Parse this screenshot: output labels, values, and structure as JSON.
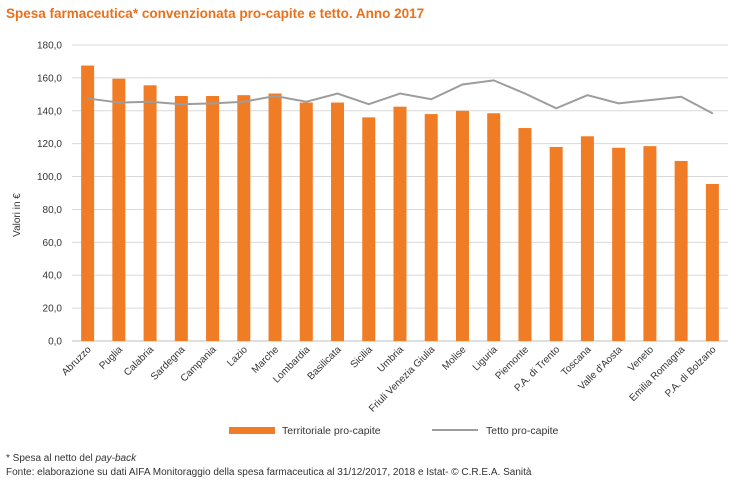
{
  "title": "Spesa farmaceutica* convenzionata pro-capite e tetto. Anno 2017",
  "footnote": {
    "prefix": "* Spesa al netto del ",
    "italic": "pay-back",
    "source": "Fonte: elaborazione su dati AIFA Monitoraggio della spesa farmaceutica al 31/12/2017, 2018 e Istat- © C.R.E.A. Sanità"
  },
  "colors": {
    "bar": "#f07d26",
    "line": "#9d9d9d",
    "title": "#e8711d",
    "grid": "#d9d9d9"
  },
  "chart_data": {
    "type": "bar",
    "title": "Spesa farmaceutica* convenzionata pro-capite e tetto. Anno 2017",
    "xlabel": "",
    "ylabel": "Valori in €",
    "ylim": [
      0,
      180
    ],
    "yticks": [
      "0,0",
      "20,0",
      "40,0",
      "60,0",
      "80,0",
      "100,0",
      "120,0",
      "140,0",
      "160,0",
      "180,0"
    ],
    "grid": true,
    "legend_position": "bottom",
    "categories": [
      "Abruzzo",
      "Puglia",
      "Calabria",
      "Sardegna",
      "Campania",
      "Lazio",
      "Marche",
      "Lombardia",
      "Basilicata",
      "Sicilia",
      "Umbria",
      "Friuli Venezia Giulia",
      "Molise",
      "Liguria",
      "Piemonte",
      "P.A. di Trento",
      "Toscana",
      "Valle d'Aosta",
      "Veneto",
      "Emilia Romagna",
      "P.A. di Bolzano"
    ],
    "series": [
      {
        "name": "Territoriale pro-capite",
        "type": "bar",
        "values": [
          167.5,
          159.5,
          155.5,
          149.0,
          149.0,
          149.5,
          150.5,
          145.0,
          145.0,
          136.0,
          142.5,
          138.0,
          140.0,
          138.5,
          129.5,
          118.0,
          124.5,
          117.5,
          118.5,
          109.5,
          95.5
        ]
      },
      {
        "name": "Tetto pro-capite",
        "type": "line",
        "values": [
          147.5,
          145.0,
          145.5,
          144.0,
          144.5,
          145.5,
          149.0,
          145.5,
          150.5,
          144.0,
          150.5,
          147.0,
          156.0,
          158.5,
          150.5,
          141.5,
          149.5,
          144.5,
          146.5,
          148.5,
          138.5
        ]
      }
    ]
  }
}
